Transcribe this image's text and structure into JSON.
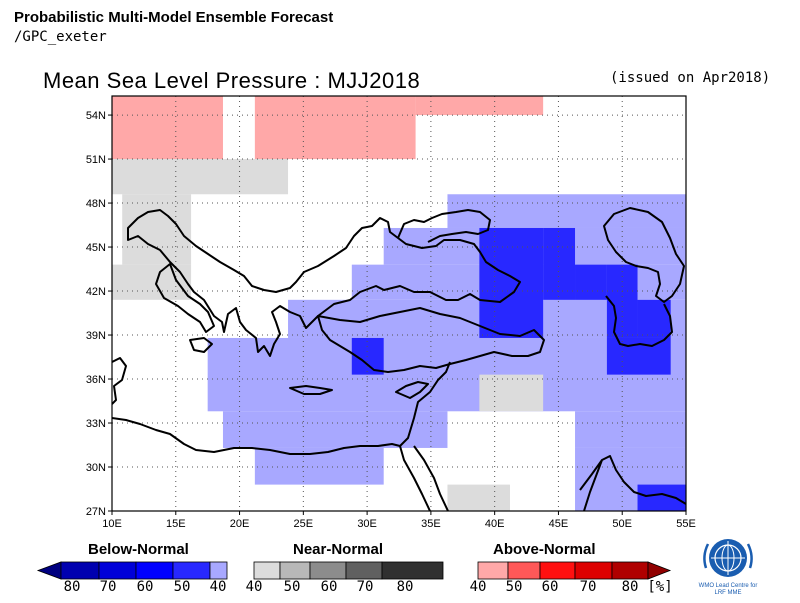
{
  "header": {
    "title": "Probabilistic Multi-Model Ensemble Forecast",
    "subtitle": "/GPC_exeter"
  },
  "map": {
    "title": "Mean Sea Level Pressure : MJJ2018",
    "issued": "(issued on Apr2018)",
    "x_ticks": [
      "10E",
      "15E",
      "20E",
      "25E",
      "30E",
      "35E",
      "40E",
      "45E",
      "50E",
      "55E"
    ],
    "y_ticks": [
      "54N",
      "51N",
      "48N",
      "45N",
      "42N",
      "39N",
      "36N",
      "33N",
      "30N",
      "27N"
    ],
    "lon_range": [
      10,
      55
    ],
    "lat_range": [
      27,
      55.3
    ],
    "cells": [
      {
        "lon": [
          10,
          18.7
        ],
        "lat": [
          51,
          55.3
        ],
        "category": "above_40"
      },
      {
        "lon": [
          21.2,
          33.8
        ],
        "lat": [
          51,
          55.3
        ],
        "category": "above_40"
      },
      {
        "lon": [
          33.8,
          43.8
        ],
        "lat": [
          54,
          55.3
        ],
        "category": "above_40"
      },
      {
        "lon": [
          10,
          23.8
        ],
        "lat": [
          48.6,
          51
        ],
        "category": "near_40"
      },
      {
        "lon": [
          10.8,
          16.2
        ],
        "lat": [
          43.8,
          48.6
        ],
        "category": "near_40"
      },
      {
        "lon": [
          10,
          16.2
        ],
        "lat": [
          41.4,
          43.8
        ],
        "category": "near_40"
      },
      {
        "lon": [
          36.3,
          55
        ],
        "lat": [
          46.3,
          48.6
        ],
        "category": "below_40"
      },
      {
        "lon": [
          31.3,
          55
        ],
        "lat": [
          43.8,
          46.3
        ],
        "category": "below_40"
      },
      {
        "lon": [
          28.8,
          55
        ],
        "lat": [
          41.4,
          43.8
        ],
        "category": "below_40"
      },
      {
        "lon": [
          23.8,
          55
        ],
        "lat": [
          38.8,
          41.4
        ],
        "category": "below_40"
      },
      {
        "lon": [
          17.5,
          55
        ],
        "lat": [
          33.8,
          38.8
        ],
        "category": "below_40"
      },
      {
        "lon": [
          18.7,
          36.3
        ],
        "lat": [
          31.3,
          33.8
        ],
        "category": "below_40"
      },
      {
        "lon": [
          46.3,
          55
        ],
        "lat": [
          31.3,
          33.8
        ],
        "category": "below_40"
      },
      {
        "lon": [
          21.2,
          31.3
        ],
        "lat": [
          28.8,
          31.3
        ],
        "category": "below_40"
      },
      {
        "lon": [
          46.3,
          55
        ],
        "lat": [
          27,
          31.3
        ],
        "category": "below_40"
      },
      {
        "lon": [
          38.8,
          43.8
        ],
        "lat": [
          38.8,
          46.3
        ],
        "category": "below_50"
      },
      {
        "lon": [
          43.8,
          46.3
        ],
        "lat": [
          41.4,
          46.3
        ],
        "category": "below_50"
      },
      {
        "lon": [
          46.3,
          48.8
        ],
        "lat": [
          41.4,
          43.8
        ],
        "category": "below_50"
      },
      {
        "lon": [
          48.8,
          51.2
        ],
        "lat": [
          38.8,
          43.8
        ],
        "category": "below_50"
      },
      {
        "lon": [
          48.8,
          53.8
        ],
        "lat": [
          36.3,
          38.8
        ],
        "category": "below_50"
      },
      {
        "lon": [
          51.2,
          53.8
        ],
        "lat": [
          38.8,
          41.4
        ],
        "category": "below_50"
      },
      {
        "lon": [
          28.8,
          31.3
        ],
        "lat": [
          36.3,
          38.8
        ],
        "category": "below_50"
      },
      {
        "lon": [
          51.2,
          55
        ],
        "lat": [
          27,
          28.8
        ],
        "category": "below_50"
      },
      {
        "lon": [
          38.8,
          43.8
        ],
        "lat": [
          33.8,
          36.3
        ],
        "category": "near_40"
      },
      {
        "lon": [
          36.3,
          41.2
        ],
        "lat": [
          27,
          28.8
        ],
        "category": "near_40"
      }
    ]
  },
  "legend": {
    "below_label": "Below-Normal",
    "near_label": "Near-Normal",
    "above_label": "Above-Normal",
    "below_ticks": [
      "80",
      "70",
      "60",
      "50",
      "40"
    ],
    "near_ticks": [
      "40",
      "50",
      "60",
      "70",
      "80"
    ],
    "above_ticks": [
      "40",
      "50",
      "60",
      "70",
      "80"
    ],
    "unit": "[%]",
    "logo_caption_1": "WMO Lead Centre for",
    "logo_caption_2": "LRF MME",
    "colors": {
      "below": [
        "#0000b0",
        "#0000d8",
        "#0000ff",
        "#2828ff",
        "#a8a8ff"
      ],
      "near": [
        "#dcdcdc",
        "#b8b8b8",
        "#8c8c8c",
        "#606060",
        "#303030"
      ],
      "above": [
        "#ffa8a8",
        "#ff5858",
        "#ff1010",
        "#dd0000",
        "#b00000"
      ],
      "cell_fill": {
        "below_40": "#a8a8ff",
        "below_50": "#2828ff",
        "near_40": "#dcdcdc",
        "above_40": "#ffa8a8"
      }
    }
  }
}
